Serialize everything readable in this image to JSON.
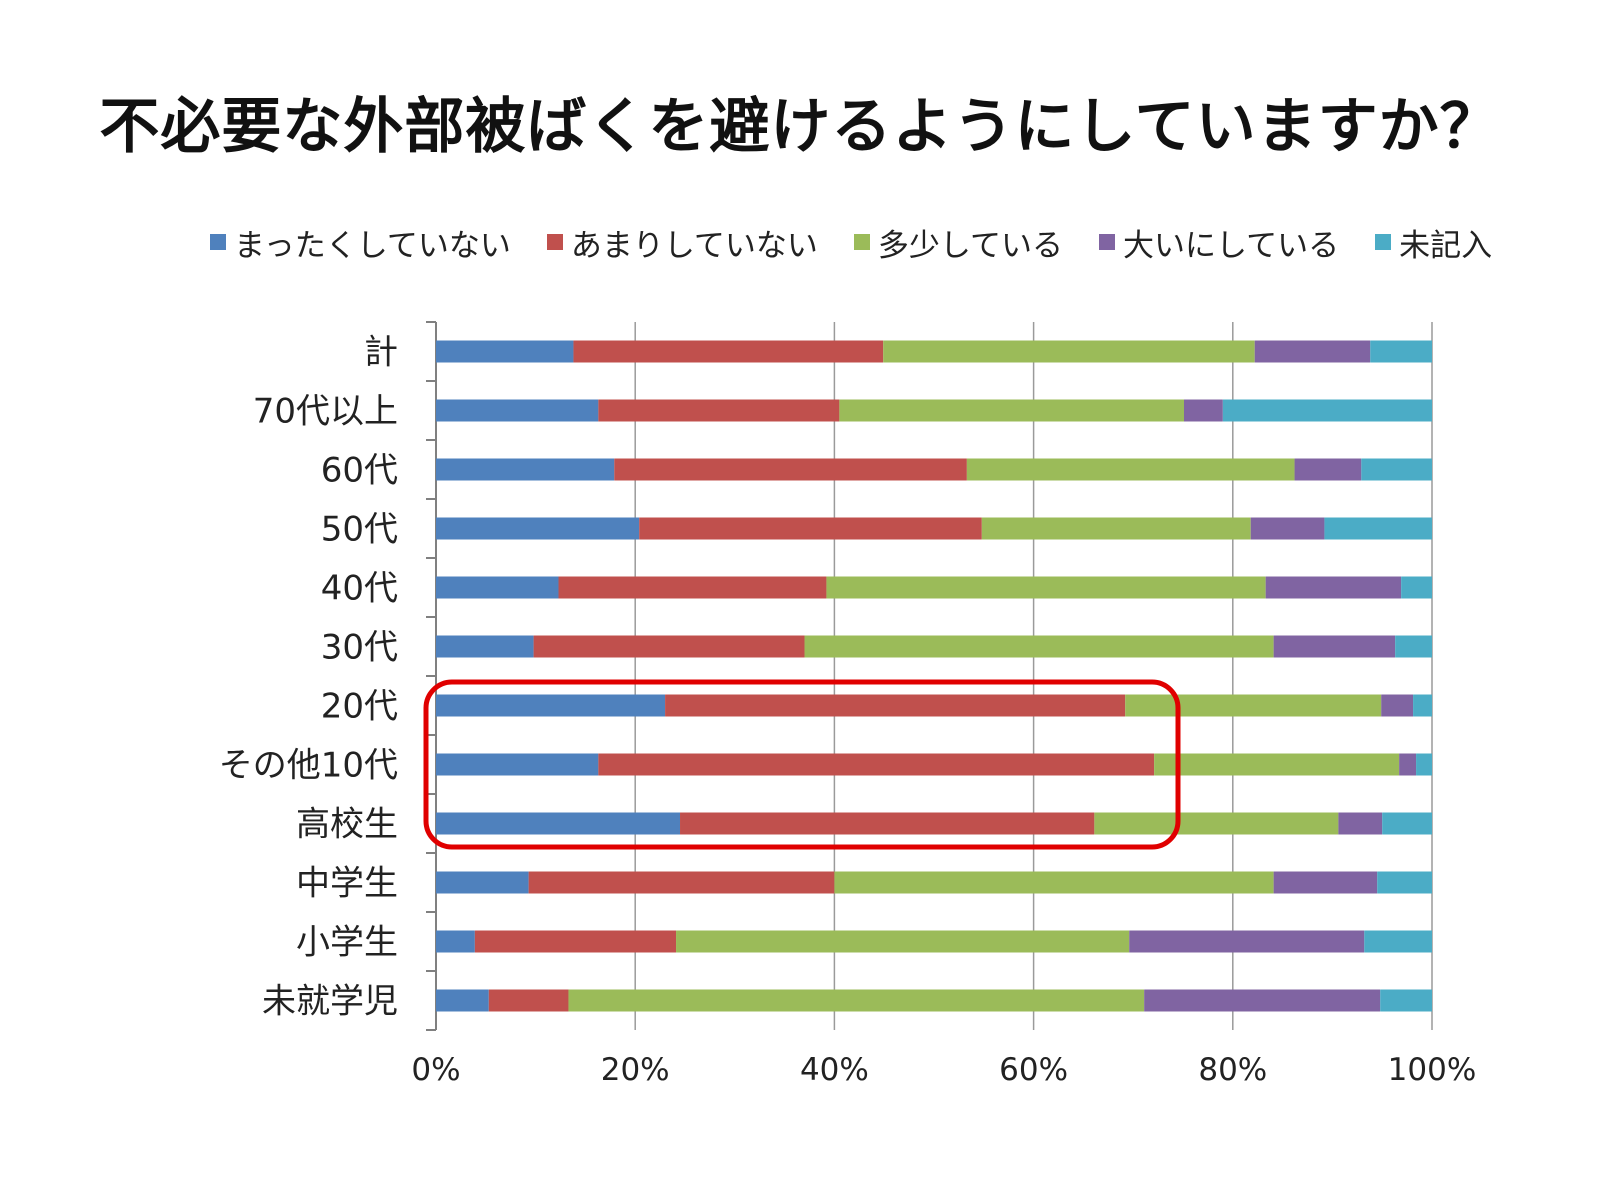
{
  "chart_data": {
    "type": "bar",
    "orientation": "horizontal",
    "stacked": "percent",
    "title": "不必要な外部被ばくを避けるようにしていますか？",
    "legend_position": "top",
    "grid": true,
    "xlim": [
      0,
      100
    ],
    "x_ticks": [
      "0%",
      "20%",
      "40%",
      "60%",
      "80%",
      "100%"
    ],
    "categories": [
      "計",
      "70代以上",
      "60代",
      "50代",
      "40代",
      "30代",
      "20代",
      "その他10代",
      "高校生",
      "中学生",
      "小学生",
      "未就学児"
    ],
    "series": [
      {
        "name": "まったくしていない",
        "color": "#4f81bd",
        "values": [
          13.8,
          16.3,
          17.9,
          20.4,
          12.3,
          9.8,
          23.0,
          16.3,
          24.5,
          9.3,
          3.9,
          5.3
        ]
      },
      {
        "name": "あまりしていない",
        "color": "#c0504d",
        "values": [
          31.1,
          24.2,
          35.4,
          34.4,
          26.9,
          27.2,
          46.2,
          55.8,
          41.6,
          30.7,
          20.2,
          8.0
        ]
      },
      {
        "name": "多少している",
        "color": "#9bbb59",
        "values": [
          37.3,
          34.6,
          32.9,
          27.0,
          44.1,
          47.1,
          25.7,
          24.6,
          24.5,
          44.1,
          45.5,
          57.8
        ]
      },
      {
        "name": "大いにしている",
        "color": "#8064a2",
        "values": [
          11.6,
          3.9,
          6.7,
          7.4,
          13.6,
          12.2,
          3.2,
          1.7,
          4.4,
          10.4,
          23.6,
          23.7
        ]
      },
      {
        "name": "未記入",
        "color": "#4bacc6",
        "values": [
          6.2,
          21.0,
          7.1,
          10.8,
          3.1,
          3.7,
          1.9,
          1.6,
          5.0,
          5.5,
          6.8,
          5.2
        ]
      }
    ]
  },
  "annotation": {
    "type": "rounded-rectangle",
    "color": "#e00000",
    "highlights": [
      "20代",
      "その他10代",
      "高校生"
    ]
  }
}
